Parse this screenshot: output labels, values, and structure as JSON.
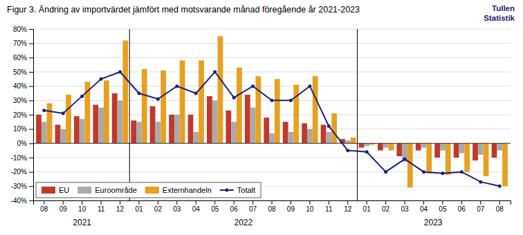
{
  "chart_data": {
    "type": "bar",
    "title": "Figur 3. Ändring av importvärdet jämfört med motsvarande månad föregående år 2021-2023",
    "annotations": [
      "2021",
      "2022",
      "2023",
      "Tullen",
      "Statistik"
    ],
    "categories": [
      "08",
      "09",
      "10",
      "11",
      "12",
      "01",
      "02",
      "03",
      "04",
      "05",
      "06",
      "07",
      "08",
      "09",
      "10",
      "11",
      "12",
      "01",
      "02",
      "03",
      "04",
      "05",
      "06",
      "07",
      "08"
    ],
    "series": [
      {
        "name": "EU",
        "type": "bar",
        "color": "#c0392b",
        "values": [
          20,
          13,
          19,
          27,
          35,
          16,
          26,
          20,
          20,
          33,
          23,
          34,
          18,
          15,
          14,
          13,
          3,
          -3,
          -5,
          -9,
          -5,
          -10,
          -10,
          -12,
          -10
        ]
      },
      {
        "name": "Euroområde",
        "type": "bar",
        "color": "#aaaaaa",
        "values": [
          15,
          10,
          17,
          25,
          30,
          15,
          15,
          20,
          8,
          30,
          15,
          25,
          7,
          8,
          10,
          8,
          2,
          -2,
          -3,
          -13,
          -3,
          -5,
          -7,
          -8,
          -5
        ]
      },
      {
        "name": "Externhandeln",
        "type": "bar",
        "color": "#e8a020",
        "values": [
          28,
          34,
          43,
          44,
          72,
          52,
          51,
          58,
          58,
          75,
          53,
          47,
          45,
          41,
          47,
          21,
          4,
          -1,
          -5,
          -31,
          -21,
          -22,
          -20,
          -23,
          -30
        ]
      },
      {
        "name": "Totalt",
        "type": "line",
        "color": "#1a237e",
        "marker": "circle",
        "values": [
          23,
          21,
          33,
          45,
          50,
          35,
          31,
          40,
          35,
          50,
          32,
          40,
          30,
          30,
          40,
          12,
          -5,
          -6,
          -20,
          -11,
          -20,
          -21,
          -20,
          -27,
          -30
        ]
      }
    ],
    "ylim": [
      -40,
      80
    ],
    "yticks": [
      {
        "value": -40,
        "label": "-40%"
      },
      {
        "value": -30,
        "label": "-30%"
      },
      {
        "value": -20,
        "label": "-20%"
      },
      {
        "value": -10,
        "label": "-10%"
      },
      {
        "value": 0,
        "label": "0%"
      },
      {
        "value": 10,
        "label": "10%"
      },
      {
        "value": 20,
        "label": "20%"
      },
      {
        "value": 30,
        "label": "30%"
      },
      {
        "value": 40,
        "label": "40%"
      },
      {
        "value": 50,
        "label": "50%"
      },
      {
        "value": 60,
        "label": "60%"
      },
      {
        "value": 70,
        "label": "70%"
      },
      {
        "value": 80,
        "label": "80%"
      }
    ],
    "grid": true,
    "legend": "lower left"
  }
}
